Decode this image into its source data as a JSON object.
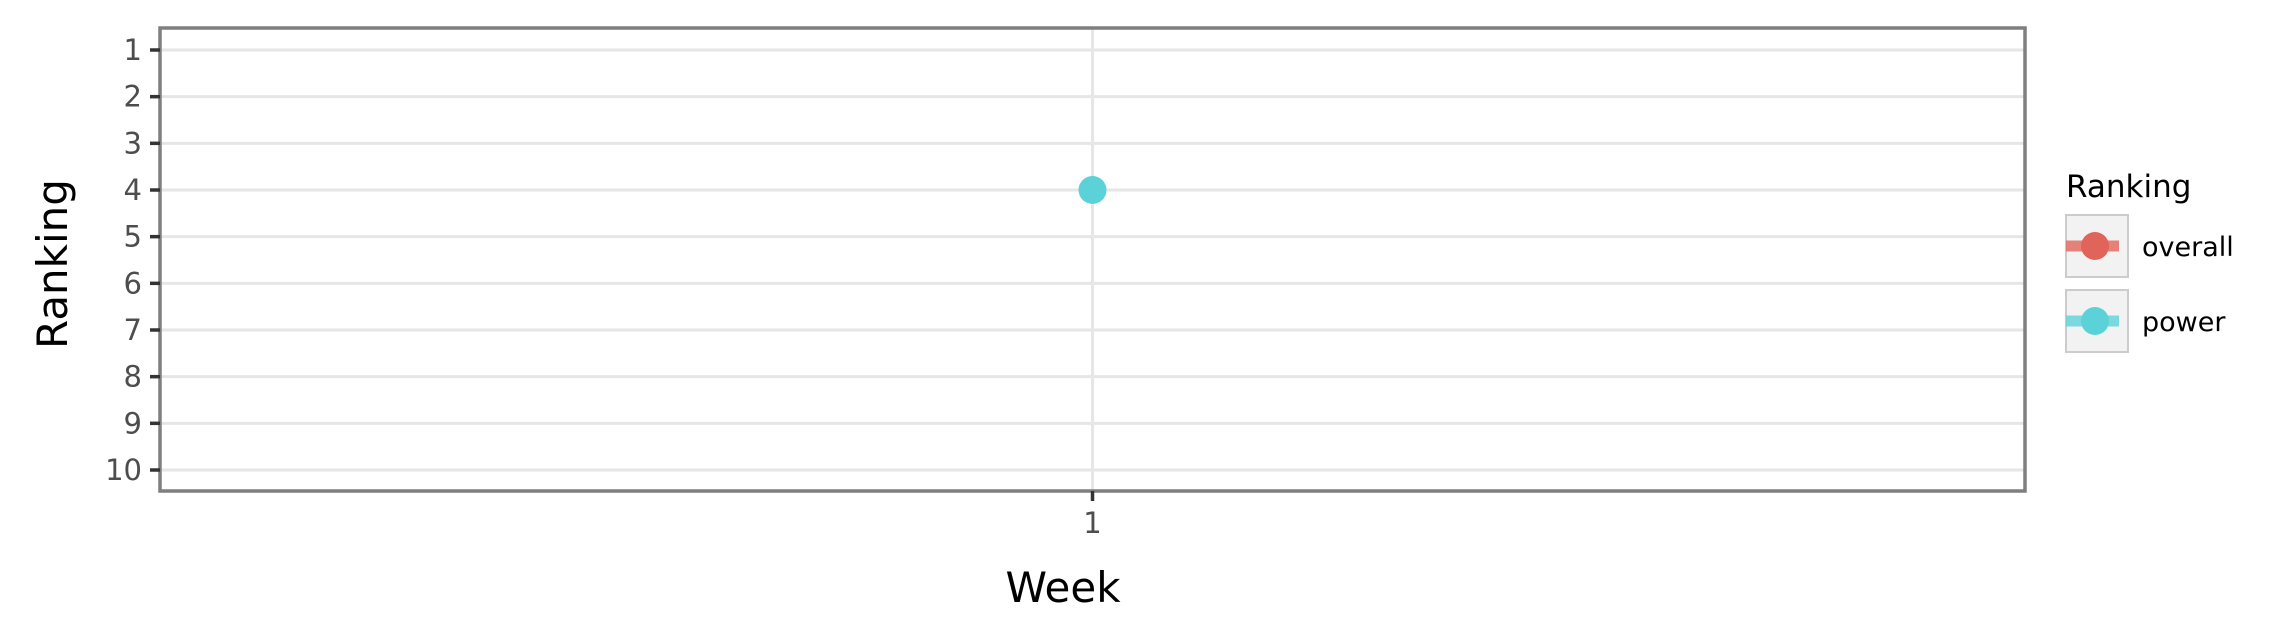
{
  "chart_data": {
    "type": "line",
    "xlabel": "Week",
    "ylabel": "Ranking",
    "x_categories": [
      "1"
    ],
    "y_ticks": [
      "1",
      "2",
      "3",
      "4",
      "5",
      "6",
      "7",
      "8",
      "9",
      "10"
    ],
    "ylim": [
      1,
      10
    ],
    "y_reversed": true,
    "grid": true,
    "legend": {
      "title": "Ranking",
      "position": "right",
      "entries": [
        "overall",
        "power"
      ]
    },
    "series": [
      {
        "name": "overall",
        "color": "#e0645a",
        "points": []
      },
      {
        "name": "power",
        "color": "#5ad2d8",
        "points": [
          {
            "x": "1",
            "y": 4
          }
        ]
      }
    ]
  }
}
